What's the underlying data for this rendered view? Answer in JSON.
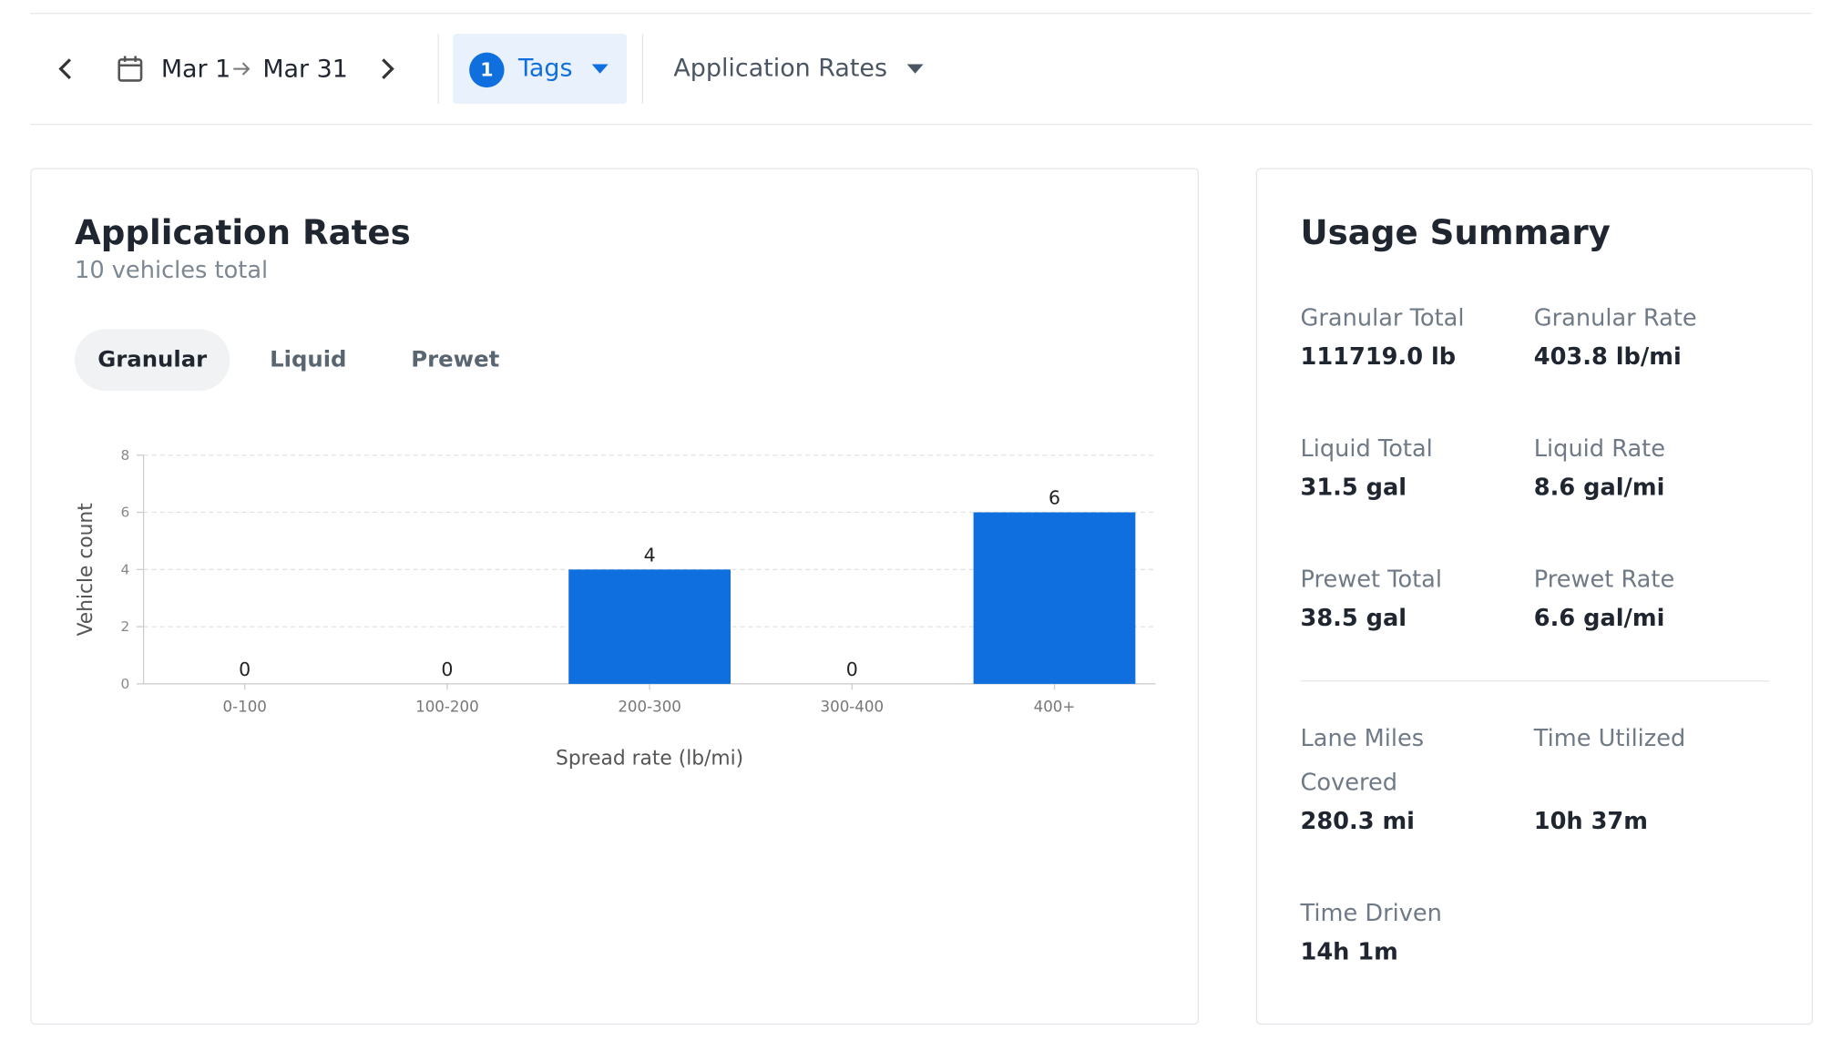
{
  "toolbar": {
    "date_start": "Mar 1",
    "date_end": "Mar 31",
    "tag_count": 1,
    "tags": "Tags",
    "view": "Application Rates"
  },
  "panel": {
    "title": "Application Rates",
    "subtitle": "10 vehicles total",
    "tabs": [
      "Granular",
      "Liquid",
      "Prewet"
    ],
    "active_tab": 0
  },
  "chart_data": {
    "type": "bar",
    "categories": [
      "0-100",
      "100-200",
      "200-300",
      "300-400",
      "400+"
    ],
    "values": [
      0,
      0,
      4,
      0,
      6
    ],
    "color": "#0f6fde",
    "ylim": [
      0,
      8
    ],
    "yticks": [
      0,
      2,
      4,
      6,
      8
    ],
    "grid": true,
    "x_label": "Spread rate (lb/mi)",
    "y_label": "Vehicle count"
  },
  "summary": {
    "title": "Usage Summary",
    "sections": [
      [
        {
          "label": "Granular Total",
          "value": "111719.0 lb"
        },
        {
          "label": "Granular Rate",
          "value": "403.8 lb/mi"
        },
        {
          "label": "Liquid Total",
          "value": "31.5 gal"
        },
        {
          "label": "Liquid Rate",
          "value": "8.6 gal/mi"
        },
        {
          "label": "Prewet Total",
          "value": "38.5 gal"
        },
        {
          "label": "Prewet Rate",
          "value": "6.6 gal/mi"
        }
      ],
      [
        {
          "label": "Lane Miles Covered",
          "value": "280.3 mi"
        },
        {
          "label": "Time Utilized",
          "value": "10h 37m"
        },
        {
          "label": "Time Driven",
          "value": "14h 1m"
        }
      ]
    ]
  }
}
